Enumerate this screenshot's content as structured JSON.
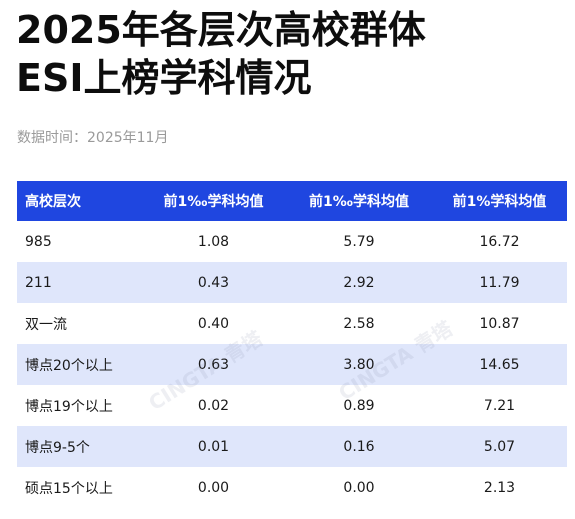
{
  "title": {
    "line1": "2025年各层次高校群体",
    "line2": "ESI上榜学科情况"
  },
  "meta": {
    "date_text": "数据时间：2025年11月"
  },
  "table": {
    "headers": [
      "高校层次",
      "前1‰学科均值",
      "前1‰学科均值",
      "前1%学科均值"
    ],
    "rows": [
      [
        "985",
        "1.08",
        "5.79",
        "16.72"
      ],
      [
        "211",
        "0.43",
        "2.92",
        "11.79"
      ],
      [
        "双一流",
        "0.40",
        "2.58",
        "10.87"
      ],
      [
        "博点20个以上",
        "0.63",
        "3.80",
        "14.65"
      ],
      [
        "博点19个以上",
        "0.02",
        "0.89",
        "7.21"
      ],
      [
        "博点9-5个",
        "0.01",
        "0.16",
        "5.07"
      ],
      [
        "硕点15个以上",
        "0.00",
        "0.00",
        "2.13"
      ]
    ]
  },
  "watermarks": [
    "CINGTA 青塔",
    "CINGTA 青塔"
  ],
  "colors": {
    "header_bg": "#1f46e0",
    "alt_row_bg": "#dfe6fb",
    "title_text": "#0d0d0d",
    "meta_text": "#9a9a9a"
  }
}
